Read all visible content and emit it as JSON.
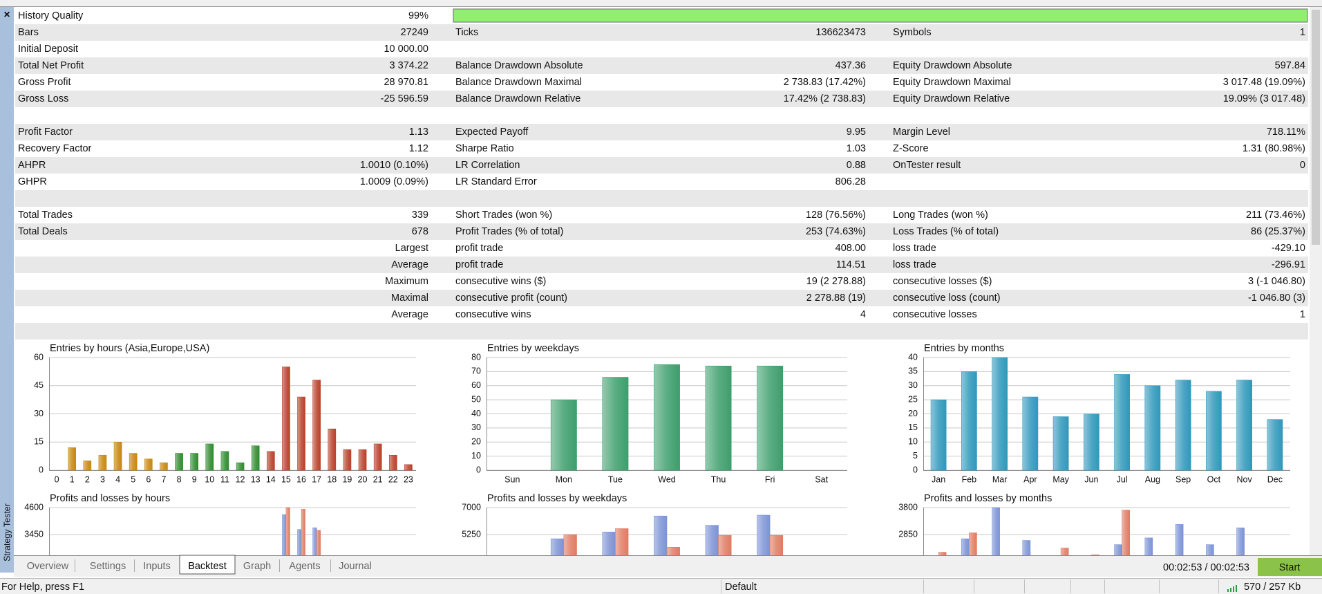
{
  "report": {
    "rows": [
      [
        [
          "History Quality",
          "99%"
        ]
      ],
      [
        [
          "Bars",
          "27249"
        ],
        [
          "Ticks",
          "136623473"
        ],
        [
          "Symbols",
          "1"
        ]
      ],
      [
        [
          "Initial Deposit",
          "10 000.00"
        ]
      ],
      [
        [
          "Total Net Profit",
          "3 374.22"
        ],
        [
          "Balance Drawdown Absolute",
          "437.36"
        ],
        [
          "Equity Drawdown Absolute",
          "597.84"
        ]
      ],
      [
        [
          "Gross Profit",
          "28 970.81"
        ],
        [
          "Balance Drawdown Maximal",
          "2 738.83 (17.42%)"
        ],
        [
          "Equity Drawdown Maximal",
          "3 017.48 (19.09%)"
        ]
      ],
      [
        [
          "Gross Loss",
          "-25 596.59"
        ],
        [
          "Balance Drawdown Relative",
          "17.42% (2 738.83)"
        ],
        [
          "Equity Drawdown Relative",
          "19.09% (3 017.48)"
        ]
      ],
      [],
      [
        [
          "Profit Factor",
          "1.13"
        ],
        [
          "Expected Payoff",
          "9.95"
        ],
        [
          "Margin Level",
          "718.11%"
        ]
      ],
      [
        [
          "Recovery Factor",
          "1.12"
        ],
        [
          "Sharpe Ratio",
          "1.03"
        ],
        [
          "Z-Score",
          "1.31 (80.98%)"
        ]
      ],
      [
        [
          "AHPR",
          "1.0010 (0.10%)"
        ],
        [
          "LR Correlation",
          "0.88"
        ],
        [
          "OnTester result",
          "0"
        ]
      ],
      [
        [
          "GHPR",
          "1.0009 (0.09%)"
        ],
        [
          "LR Standard Error",
          "806.28"
        ]
      ],
      [],
      [
        [
          "Total Trades",
          "339"
        ],
        [
          "Short Trades (won %)",
          "128 (76.56%)"
        ],
        [
          "Long Trades (won %)",
          "211 (73.46%)"
        ]
      ],
      [
        [
          "Total Deals",
          "678"
        ],
        [
          "Profit Trades (% of total)",
          "253 (74.63%)"
        ],
        [
          "Loss Trades (% of total)",
          "86 (25.37%)"
        ]
      ],
      [
        [
          "Largest"
        ],
        [
          "profit trade",
          "408.00"
        ],
        [
          "loss trade",
          "-429.10"
        ]
      ],
      [
        [
          "Average"
        ],
        [
          "profit trade",
          "114.51"
        ],
        [
          "loss trade",
          "-296.91"
        ]
      ],
      [
        [
          "Maximum"
        ],
        [
          "consecutive wins ($)",
          "19 (2 278.88)"
        ],
        [
          "consecutive losses ($)",
          "3 (-1 046.80)"
        ]
      ],
      [
        [
          "Maximal"
        ],
        [
          "consecutive profit (count)",
          "2 278.88 (19)"
        ],
        [
          "consecutive loss (count)",
          "-1 046.80 (3)"
        ]
      ],
      [
        [
          "Average"
        ],
        [
          "consecutive wins",
          "4"
        ],
        [
          "consecutive losses",
          "1"
        ]
      ],
      []
    ]
  },
  "charts": [
    {
      "type": "bar",
      "title": "Entries by hours (Asia,Europe,USA)",
      "categories": [
        "0",
        "1",
        "2",
        "3",
        "4",
        "5",
        "6",
        "7",
        "8",
        "9",
        "10",
        "11",
        "12",
        "13",
        "14",
        "15",
        "16",
        "17",
        "18",
        "19",
        "20",
        "21",
        "22",
        "23"
      ],
      "values": [
        0,
        12,
        5,
        8,
        15,
        9,
        6,
        4,
        9,
        9,
        14,
        10,
        4,
        13,
        10,
        55,
        39,
        48,
        22,
        11,
        11,
        14,
        8,
        3
      ],
      "colors": [
        "#c8860e",
        "#c8860e",
        "#c8860e",
        "#c8860e",
        "#c8860e",
        "#c8860e",
        "#c8860e",
        "#c8860e",
        "#2e8b2e",
        "#2e8b2e",
        "#2e8b2e",
        "#2e8b2e",
        "#2e8b2e",
        "#2e8b2e",
        "#b8402a",
        "#b8402a",
        "#b8402a",
        "#b8402a",
        "#b8402a",
        "#b8402a",
        "#b8402a",
        "#b8402a",
        "#b8402a",
        "#b8402a"
      ],
      "ylim": [
        0,
        60
      ],
      "yticks": [
        0,
        15,
        30,
        45,
        60
      ],
      "grid": true
    },
    {
      "type": "bar",
      "title": "Entries by weekdays",
      "categories": [
        "Sun",
        "Mon",
        "Tue",
        "Wed",
        "Thu",
        "Fri",
        "Sat"
      ],
      "values": [
        0,
        50,
        66,
        75,
        74,
        74,
        0
      ],
      "color": "#3d9e6c",
      "ylim": [
        0,
        80
      ],
      "yticks": [
        0,
        10,
        20,
        30,
        40,
        50,
        60,
        70,
        80
      ],
      "grid": true
    },
    {
      "type": "bar",
      "title": "Entries by months",
      "categories": [
        "Jan",
        "Feb",
        "Mar",
        "Apr",
        "May",
        "Jun",
        "Jul",
        "Aug",
        "Sep",
        "Oct",
        "Nov",
        "Dec"
      ],
      "values": [
        25,
        35,
        40,
        26,
        19,
        20,
        34,
        30,
        32,
        28,
        32,
        18
      ],
      "color": "#2f98bb",
      "ylim": [
        0,
        40
      ],
      "yticks": [
        0,
        5,
        10,
        15,
        20,
        25,
        30,
        35,
        40
      ],
      "grid": true
    },
    {
      "type": "grouped-bar",
      "title": "Profits and losses by hours",
      "x": [
        15,
        16,
        17
      ],
      "xlim": [
        -0.5,
        23.5
      ],
      "series": [
        {
          "color": "#7c93d6",
          "values": [
            4300,
            3665,
            3740
          ]
        },
        {
          "color": "#e07b62",
          "values": [
            4600,
            4530,
            3630
          ]
        }
      ],
      "ylim": [
        0,
        4600
      ],
      "yticks": [
        3450,
        4600
      ],
      "grid": true
    },
    {
      "type": "grouped-bar",
      "title": "Profits and losses by weekdays",
      "x": [
        1,
        2,
        3,
        4,
        5
      ],
      "xlim": [
        -0.5,
        6.5
      ],
      "series": [
        {
          "color": "#7c93d6",
          "values": [
            4977,
            5414,
            6453,
            5852,
            6508
          ]
        },
        {
          "color": "#e07b62",
          "values": [
            5250,
            5633,
            4430,
            5195,
            5195
          ]
        }
      ],
      "ylim": [
        0,
        7000
      ],
      "yticks": [
        5250,
        7000
      ],
      "grid": true
    },
    {
      "type": "grouped-bar",
      "title": "Profits and losses by months",
      "x": [
        0,
        1,
        2,
        3,
        4,
        5,
        6,
        7,
        8,
        9,
        10
      ],
      "xlim": [
        -0.5,
        11.5
      ],
      "series": [
        {
          "color": "#7c93d6",
          "values": [
            null,
            2701,
            3800,
            2642,
            null,
            null,
            2494,
            2731,
            3206,
            2494,
            3087
          ]
        },
        {
          "color": "#e07b62",
          "values": [
            2227,
            2909,
            null,
            null,
            2375,
            2138,
            3711,
            null,
            null,
            null,
            null
          ]
        }
      ],
      "ylim": [
        0,
        3800
      ],
      "yticks": [
        2850,
        3800
      ],
      "grid": true
    }
  ],
  "tabs": [
    "Overview",
    "Settings",
    "Inputs",
    "Backtest",
    "Graph",
    "Agents",
    "Journal"
  ],
  "active_tab": 3,
  "timer": "00:02:53 / 00:02:53",
  "start_button": "Start",
  "sidebar_title": "Strategy Tester",
  "status_bar": {
    "help": "For Help, press F1",
    "profile": "Default",
    "traffic": "570 / 257 Kb"
  }
}
